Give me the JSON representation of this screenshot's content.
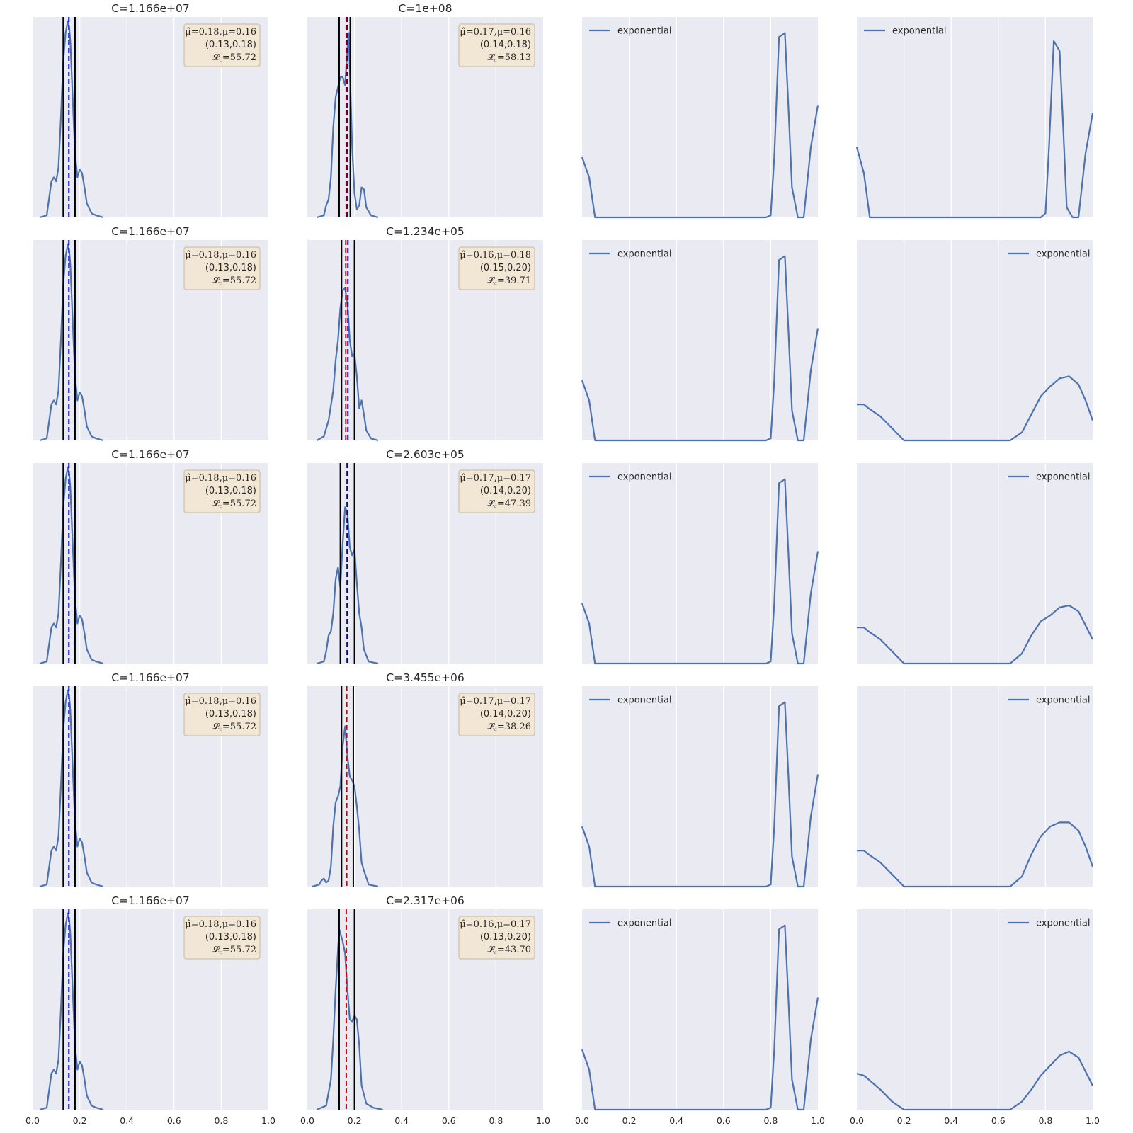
{
  "chart_data": {
    "type": "line",
    "layout": {
      "rows": 5,
      "cols": 4
    },
    "xlim": [
      0.0,
      1.0
    ],
    "xticks": [
      "0.0",
      "0.2",
      "0.4",
      "0.6",
      "0.8",
      "1.0"
    ],
    "grid": true,
    "colors": {
      "background": "#EAEAF2",
      "grid": "#FFFFFF",
      "line": "#4C72B0",
      "vline": "#000000",
      "dash_blue": "#0000CC",
      "dash_red": "#CC0000",
      "stats_box": "#F2E6D4",
      "stats_box_edge": "#C7B89E"
    },
    "col1": [
      {
        "title": "C=1.166e+07",
        "stats": [
          "μ̂=0.18,μ=0.16",
          "(0.13,0.18)",
          "𝓛꜀=55.72"
        ],
        "vlines": [
          0.13,
          0.18
        ],
        "dashes": [
          {
            "x": 0.154,
            "color": "blue"
          }
        ]
      },
      {
        "title": "C=1.166e+07",
        "stats": [
          "μ̂=0.18,μ=0.16",
          "(0.13,0.18)",
          "𝓛꜀=55.72"
        ],
        "vlines": [
          0.13,
          0.18
        ],
        "dashes": [
          {
            "x": 0.154,
            "color": "blue"
          }
        ]
      },
      {
        "title": "C=1.166e+07",
        "stats": [
          "μ̂=0.18,μ=0.16",
          "(0.13,0.18)",
          "𝓛꜀=55.72"
        ],
        "vlines": [
          0.13,
          0.18
        ],
        "dashes": [
          {
            "x": 0.154,
            "color": "blue"
          }
        ]
      },
      {
        "title": "C=1.166e+07",
        "stats": [
          "μ̂=0.18,μ=0.16",
          "(0.13,0.18)",
          "𝓛꜀=55.72"
        ],
        "vlines": [
          0.13,
          0.18
        ],
        "dashes": [
          {
            "x": 0.154,
            "color": "blue"
          }
        ]
      },
      {
        "title": "C=1.166e+07",
        "stats": [
          "μ̂=0.18,μ=0.16",
          "(0.13,0.18)",
          "𝓛꜀=55.72"
        ],
        "vlines": [
          0.13,
          0.18
        ],
        "dashes": [
          {
            "x": 0.154,
            "color": "blue"
          }
        ]
      }
    ],
    "col2": [
      {
        "title": "C=1e+08",
        "stats": [
          "μ̂=0.17,μ=0.16",
          "(0.14,0.18)",
          "𝓛꜀=58.13"
        ],
        "vlines": [
          0.135,
          0.182
        ],
        "dashes": [
          {
            "x": 0.165,
            "color": "red"
          },
          {
            "x": 0.168,
            "color": "blue"
          }
        ]
      },
      {
        "title": "C=1.234e+05",
        "stats": [
          "μ̂=0.16,μ=0.18",
          "(0.15,0.20)",
          "𝓛꜀=39.71"
        ],
        "vlines": [
          0.145,
          0.2
        ],
        "dashes": [
          {
            "x": 0.163,
            "color": "red"
          },
          {
            "x": 0.172,
            "color": "blue"
          }
        ]
      },
      {
        "title": "C=2.603e+05",
        "stats": [
          "μ̂=0.17,μ=0.17",
          "(0.14,0.20)",
          "𝓛꜀=47.39"
        ],
        "vlines": [
          0.14,
          0.2
        ],
        "dashes": [
          {
            "x": 0.168,
            "color": "red"
          },
          {
            "x": 0.171,
            "color": "blue"
          }
        ]
      },
      {
        "title": "C=3.455e+06",
        "stats": [
          "μ̂=0.17,μ=0.17",
          "(0.14,0.20)",
          "𝓛꜀=38.26"
        ],
        "vlines": [
          0.145,
          0.195
        ],
        "dashes": [
          {
            "x": 0.167,
            "color": "red"
          }
        ]
      },
      {
        "title": "C=2.317e+06",
        "stats": [
          "μ̂=0.16,μ=0.17",
          "(0.13,0.20)",
          "𝓛꜀=43.70"
        ],
        "vlines": [
          0.135,
          0.2
        ],
        "dashes": [
          {
            "x": 0.165,
            "color": "red"
          }
        ]
      }
    ],
    "legend_label": "exponential",
    "col4_legend_position": [
      "upper-left",
      "upper-right",
      "upper-right",
      "upper-right",
      "upper-right"
    ],
    "series": {
      "col1": {
        "x": [
          0.03,
          0.06,
          0.08,
          0.09,
          0.1,
          0.11,
          0.12,
          0.13,
          0.14,
          0.15,
          0.155,
          0.16,
          0.17,
          0.18,
          0.19,
          0.2,
          0.21,
          0.22,
          0.23,
          0.25,
          0.27,
          0.3
        ],
        "y": [
          0.0,
          0.01,
          0.18,
          0.2,
          0.18,
          0.25,
          0.5,
          0.78,
          0.92,
          0.98,
          0.95,
          0.88,
          0.6,
          0.32,
          0.2,
          0.24,
          0.22,
          0.15,
          0.07,
          0.02,
          0.01,
          0.0
        ]
      },
      "col2": [
        {
          "x": [
            0.04,
            0.07,
            0.08,
            0.09,
            0.1,
            0.11,
            0.12,
            0.13,
            0.14,
            0.15,
            0.16,
            0.17,
            0.175,
            0.18,
            0.19,
            0.2,
            0.21,
            0.22,
            0.23,
            0.24,
            0.25,
            0.27,
            0.3
          ],
          "y": [
            0.0,
            0.01,
            0.06,
            0.09,
            0.2,
            0.45,
            0.6,
            0.65,
            0.7,
            0.7,
            0.66,
            0.84,
            0.92,
            0.75,
            0.35,
            0.12,
            0.04,
            0.06,
            0.15,
            0.14,
            0.05,
            0.01,
            0.0
          ]
        },
        {
          "x": [
            0.04,
            0.07,
            0.09,
            0.11,
            0.12,
            0.13,
            0.14,
            0.15,
            0.16,
            0.17,
            0.18,
            0.19,
            0.2,
            0.21,
            0.22,
            0.23,
            0.24,
            0.25,
            0.27,
            0.3
          ],
          "y": [
            0.0,
            0.02,
            0.1,
            0.25,
            0.4,
            0.5,
            0.66,
            0.75,
            0.76,
            0.68,
            0.5,
            0.42,
            0.43,
            0.32,
            0.16,
            0.2,
            0.13,
            0.05,
            0.01,
            0.0
          ]
        },
        {
          "x": [
            0.04,
            0.07,
            0.08,
            0.09,
            0.1,
            0.11,
            0.12,
            0.13,
            0.14,
            0.15,
            0.16,
            0.17,
            0.18,
            0.19,
            0.2,
            0.21,
            0.22,
            0.23,
            0.24,
            0.26,
            0.3
          ],
          "y": [
            0.0,
            0.01,
            0.06,
            0.14,
            0.16,
            0.25,
            0.42,
            0.48,
            0.38,
            0.6,
            0.78,
            0.75,
            0.58,
            0.54,
            0.57,
            0.4,
            0.25,
            0.18,
            0.07,
            0.01,
            0.0
          ]
        },
        {
          "x": [
            0.02,
            0.05,
            0.06,
            0.07,
            0.08,
            0.09,
            0.1,
            0.11,
            0.12,
            0.13,
            0.14,
            0.15,
            0.16,
            0.17,
            0.18,
            0.19,
            0.2,
            0.21,
            0.22,
            0.23,
            0.24,
            0.26,
            0.3
          ],
          "y": [
            0.0,
            0.01,
            0.03,
            0.04,
            0.02,
            0.03,
            0.1,
            0.3,
            0.42,
            0.45,
            0.5,
            0.7,
            0.8,
            0.65,
            0.55,
            0.53,
            0.5,
            0.4,
            0.28,
            0.12,
            0.08,
            0.01,
            0.0
          ]
        },
        {
          "x": [
            0.04,
            0.08,
            0.1,
            0.11,
            0.12,
            0.13,
            0.135,
            0.14,
            0.15,
            0.16,
            0.17,
            0.18,
            0.19,
            0.2,
            0.21,
            0.22,
            0.23,
            0.25,
            0.28,
            0.32
          ],
          "y": [
            0.0,
            0.02,
            0.15,
            0.35,
            0.6,
            0.8,
            0.9,
            0.88,
            0.84,
            0.78,
            0.6,
            0.45,
            0.44,
            0.47,
            0.45,
            0.32,
            0.12,
            0.03,
            0.01,
            0.0
          ]
        }
      ],
      "col3": {
        "x": [
          0.0,
          0.03,
          0.055,
          0.1,
          0.2,
          0.4,
          0.6,
          0.78,
          0.8,
          0.815,
          0.835,
          0.86,
          0.875,
          0.89,
          0.915,
          0.94,
          0.97,
          1.0
        ],
        "y": [
          0.3,
          0.2,
          0.0,
          0.0,
          0.0,
          0.0,
          0.0,
          0.0,
          0.01,
          0.3,
          0.9,
          0.92,
          0.55,
          0.15,
          0.0,
          0.0,
          0.35,
          0.56
        ]
      },
      "col4": [
        {
          "x": [
            0.0,
            0.03,
            0.055,
            0.1,
            0.2,
            0.4,
            0.6,
            0.78,
            0.8,
            0.815,
            0.835,
            0.86,
            0.875,
            0.89,
            0.915,
            0.94,
            0.97,
            1.0
          ],
          "y": [
            0.35,
            0.22,
            0.0,
            0.0,
            0.0,
            0.0,
            0.0,
            0.0,
            0.02,
            0.35,
            0.88,
            0.83,
            0.45,
            0.05,
            0.0,
            0.0,
            0.32,
            0.52
          ]
        },
        {
          "x": [
            0.0,
            0.03,
            0.05,
            0.1,
            0.15,
            0.2,
            0.4,
            0.6,
            0.65,
            0.7,
            0.74,
            0.78,
            0.82,
            0.86,
            0.9,
            0.94,
            0.97,
            1.0
          ],
          "y": [
            0.18,
            0.18,
            0.16,
            0.12,
            0.06,
            0.0,
            0.0,
            0.0,
            0.0,
            0.04,
            0.13,
            0.22,
            0.27,
            0.31,
            0.32,
            0.28,
            0.2,
            0.1
          ]
        },
        {
          "x": [
            0.0,
            0.03,
            0.05,
            0.1,
            0.15,
            0.2,
            0.4,
            0.6,
            0.65,
            0.7,
            0.74,
            0.78,
            0.82,
            0.86,
            0.9,
            0.94,
            0.97,
            1.0
          ],
          "y": [
            0.18,
            0.18,
            0.16,
            0.12,
            0.06,
            0.0,
            0.0,
            0.0,
            0.0,
            0.05,
            0.14,
            0.21,
            0.24,
            0.28,
            0.29,
            0.26,
            0.19,
            0.12
          ]
        },
        {
          "x": [
            0.0,
            0.03,
            0.05,
            0.1,
            0.15,
            0.2,
            0.4,
            0.6,
            0.65,
            0.7,
            0.74,
            0.78,
            0.82,
            0.86,
            0.9,
            0.94,
            0.97,
            1.0
          ],
          "y": [
            0.18,
            0.18,
            0.16,
            0.12,
            0.06,
            0.0,
            0.0,
            0.0,
            0.0,
            0.05,
            0.16,
            0.25,
            0.3,
            0.32,
            0.32,
            0.28,
            0.2,
            0.1
          ]
        },
        {
          "x": [
            0.0,
            0.03,
            0.05,
            0.1,
            0.15,
            0.2,
            0.4,
            0.6,
            0.65,
            0.7,
            0.74,
            0.78,
            0.82,
            0.86,
            0.9,
            0.94,
            0.97,
            1.0
          ],
          "y": [
            0.18,
            0.17,
            0.15,
            0.1,
            0.04,
            0.0,
            0.0,
            0.0,
            0.0,
            0.04,
            0.1,
            0.17,
            0.22,
            0.27,
            0.29,
            0.26,
            0.19,
            0.12
          ]
        }
      ]
    }
  }
}
